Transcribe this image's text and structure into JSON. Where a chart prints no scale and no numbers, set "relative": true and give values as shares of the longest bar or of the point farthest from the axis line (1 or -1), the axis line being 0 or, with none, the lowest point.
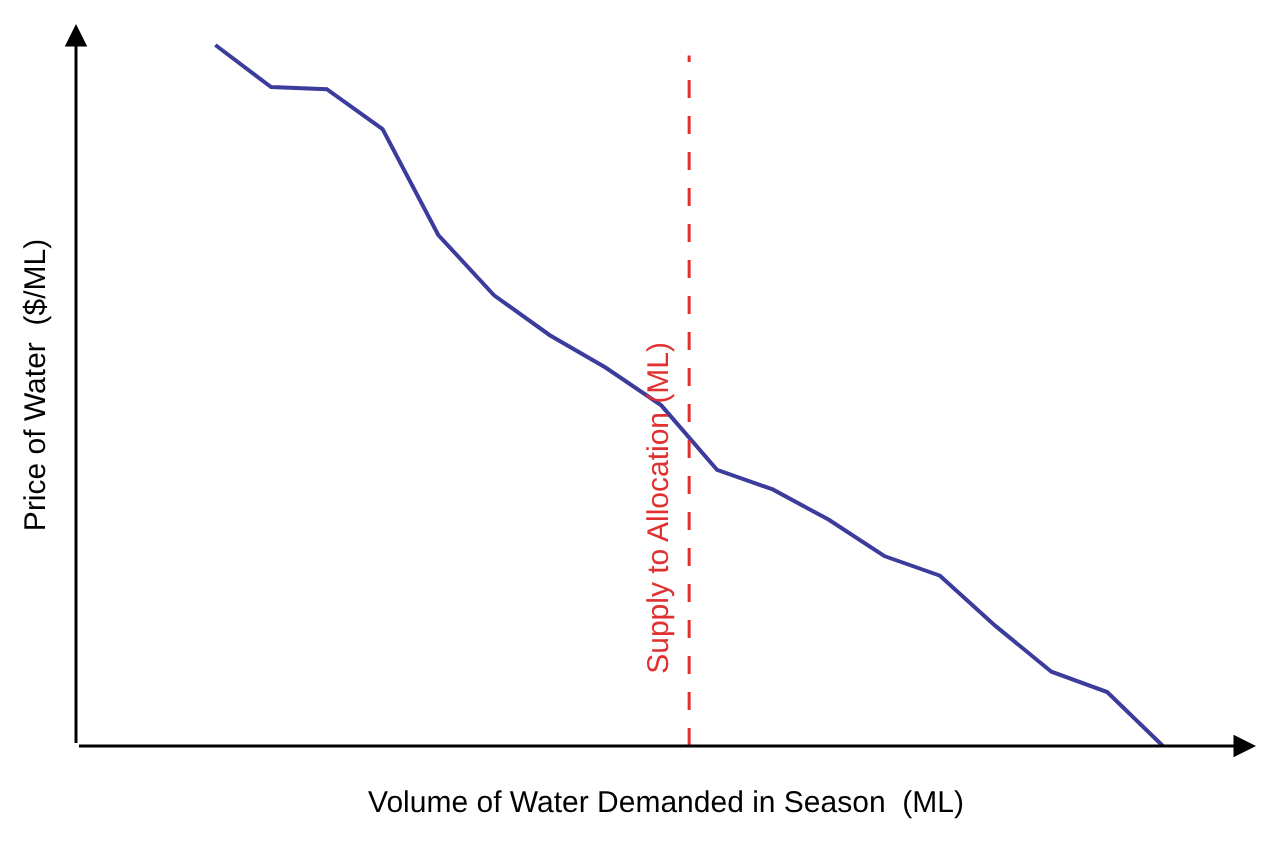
{
  "chart_data": {
    "type": "line",
    "relative": true,
    "xlabel": "Volume of Water Demanded in Season  (ML)",
    "ylabel": "Price of Water  ($/ML)",
    "marker": "none",
    "line_style": "solid",
    "categories": [
      null,
      null,
      null,
      null,
      null,
      null,
      null,
      null,
      null,
      null,
      null,
      null,
      null,
      null,
      null,
      null,
      null,
      null
    ],
    "series": [
      {
        "color": "#3c3c9c",
        "values": [
          1.0,
          0.94,
          0.937,
          0.88,
          0.729,
          0.643,
          0.586,
          0.54,
          0.486,
          0.394,
          0.366,
          0.323,
          0.271,
          0.243,
          0.171,
          0.106,
          0.077,
          0
        ]
      }
    ],
    "annotations": [
      "Supply to Allocation (ML)"
    ]
  }
}
